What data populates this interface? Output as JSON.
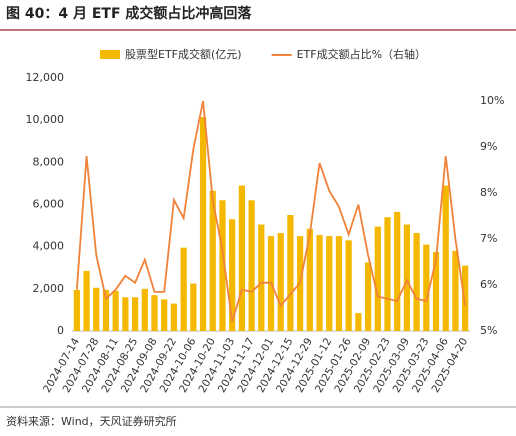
{
  "chart_data": {
    "type": "bar-line",
    "title": "图 40：4 月 ETF 成交额占比冲高回落",
    "source": "资料来源：Wind，天风证券研究所",
    "categories": [
      "2024-07-14",
      null,
      "2024-07-28",
      null,
      "2024-08-11",
      null,
      "2024-08-25",
      null,
      "2024-09-08",
      null,
      "2024-09-22",
      null,
      "2024-10-06",
      null,
      "2024-10-20",
      null,
      "2024-11-03",
      null,
      "2024-11-17",
      null,
      "2024-12-01",
      null,
      "2024-12-15",
      null,
      "2024-12-29",
      null,
      "2025-01-12",
      null,
      "2025-01-26",
      null,
      "2025-02-09",
      null,
      "2025-02-23",
      null,
      "2025-03-09",
      null,
      "2025-03-23",
      null,
      "2025-04-06",
      null,
      "2025-04-20"
    ],
    "series": [
      {
        "name": "股票型ETF成交额(亿元)",
        "type": "bar",
        "color": "#f5b800",
        "values": [
          1950,
          2850,
          2050,
          1950,
          1900,
          1600,
          1600,
          2000,
          1700,
          1500,
          1300,
          3950,
          2250,
          10150,
          6650,
          6200,
          5300,
          6900,
          6200,
          5050,
          4500,
          4650,
          5500,
          4500,
          4850,
          4550,
          4500,
          4500,
          4300,
          850,
          3250,
          4950,
          5400,
          5650,
          5050,
          4650,
          4100,
          3750,
          6900,
          3800,
          3100
        ]
      },
      {
        "name": "ETF成交额占比%（右轴）",
        "type": "line",
        "axis": "y2",
        "color": "#f0823a",
        "values": [
          5.9,
          8.8,
          6.65,
          5.7,
          5.9,
          6.2,
          6.05,
          6.55,
          5.85,
          5.85,
          7.85,
          7.45,
          8.95,
          10.0,
          7.85,
          6.75,
          5.2,
          5.9,
          5.85,
          6.05,
          6.05,
          5.55,
          5.8,
          6.05,
          7.1,
          8.65,
          8.05,
          7.7,
          7.1,
          7.75,
          6.65,
          5.75,
          5.7,
          5.65,
          6.1,
          5.7,
          5.65,
          6.55,
          8.8,
          7.0,
          5.55
        ]
      }
    ],
    "ylim": [
      0,
      12000
    ],
    "yticks": [
      0,
      {
        "value": 2000,
        "label": "2,000"
      },
      {
        "value": 4000,
        "label": "4,000"
      },
      {
        "value": 6000,
        "label": "6,000"
      },
      {
        "value": 8000,
        "label": "8,000"
      },
      {
        "value": 10000,
        "label": "10,000"
      },
      {
        "value": 12000,
        "label": "12,000"
      }
    ],
    "y2lim": [
      5,
      10
    ],
    "y2ticks": [
      {
        "value": 5,
        "label": "5%"
      },
      {
        "value": 6,
        "label": "6%"
      },
      {
        "value": 7,
        "label": "7%"
      },
      {
        "value": 8,
        "label": "8%"
      },
      {
        "value": 9,
        "label": "9%"
      },
      {
        "value": 10,
        "label": "10%"
      }
    ]
  }
}
